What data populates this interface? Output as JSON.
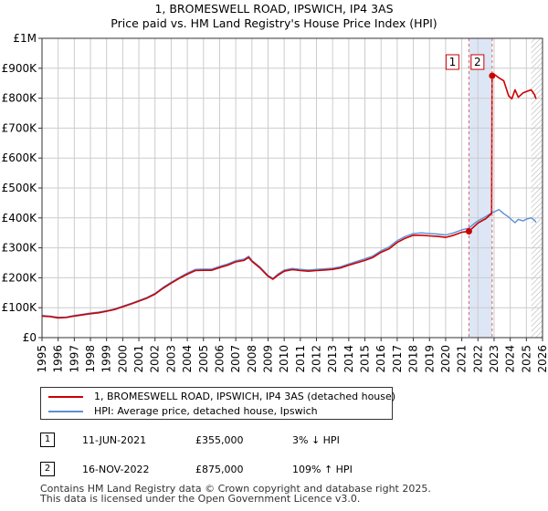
{
  "title_line1": "1, BROMESWELL ROAD, IPSWICH, IP4 3AS",
  "title_line2": "Price paid vs. HM Land Registry's House Price Index (HPI)",
  "legend": {
    "property_label": "1, BROMESWELL ROAD, IPSWICH, IP4 3AS (detached house)",
    "hpi_label": "HPI: Average price, detached house, Ipswich"
  },
  "sales": [
    {
      "marker": "1",
      "date": "11-JUN-2021",
      "price": "£355,000",
      "hpi_note": "3% ↓ HPI"
    },
    {
      "marker": "2",
      "date": "16-NOV-2022",
      "price": "£875,000",
      "hpi_note": "109% ↑ HPI"
    }
  ],
  "footer_line1": "Contains HM Land Registry data © Crown copyright and database right 2025.",
  "footer_line2": "This data is licensed under the Open Government Licence v3.0.",
  "chart_data": {
    "type": "line",
    "title": "1, BROMESWELL ROAD, IPSWICH, IP4 3AS — Price paid vs. HM Land Registry's House Price Index (HPI)",
    "xlim": [
      1995,
      2026
    ],
    "ylim": [
      0,
      1000000
    ],
    "x_ticks": [
      "1995",
      "1996",
      "1997",
      "1998",
      "1999",
      "2000",
      "2001",
      "2002",
      "2003",
      "2004",
      "2005",
      "2006",
      "2007",
      "2008",
      "2009",
      "2010",
      "2011",
      "2012",
      "2013",
      "2014",
      "2015",
      "2016",
      "2017",
      "2018",
      "2019",
      "2020",
      "2021",
      "2022",
      "2023",
      "2024",
      "2025",
      "2026"
    ],
    "y_ticks": [
      {
        "value": 0,
        "label": "£0"
      },
      {
        "value": 100000,
        "label": "£100K"
      },
      {
        "value": 200000,
        "label": "£200K"
      },
      {
        "value": 300000,
        "label": "£300K"
      },
      {
        "value": 400000,
        "label": "£400K"
      },
      {
        "value": 500000,
        "label": "£500K"
      },
      {
        "value": 600000,
        "label": "£600K"
      },
      {
        "value": 700000,
        "label": "£700K"
      },
      {
        "value": 800000,
        "label": "£800K"
      },
      {
        "value": 900000,
        "label": "£900K"
      },
      {
        "value": 1000000,
        "label": "£1M"
      }
    ],
    "shaded_span": [
      2021.44,
      2022.88
    ],
    "hatched_from": 2025.3,
    "colors": {
      "property": "#cc0000",
      "hpi": "#5b8fd6",
      "shade": "#dde6f5",
      "grid": "#cccccc",
      "vline": "#e06060",
      "marker_label_bg": "#ffffff"
    },
    "series": [
      {
        "name": "1, BROMESWELL ROAD, IPSWICH, IP4 3AS (detached house)",
        "x": [
          1995.0,
          1995.5,
          1996.0,
          1996.5,
          1997.0,
          1997.5,
          1998.0,
          1998.5,
          1999.0,
          1999.5,
          2000.0,
          2000.5,
          2001.0,
          2001.5,
          2002.0,
          2002.5,
          2003.0,
          2003.5,
          2004.0,
          2004.5,
          2005.0,
          2005.5,
          2006.0,
          2006.5,
          2007.0,
          2007.5,
          2007.8,
          2008.0,
          2008.5,
          2009.0,
          2009.3,
          2009.6,
          2010.0,
          2010.5,
          2011.0,
          2011.5,
          2012.0,
          2012.5,
          2013.0,
          2013.5,
          2014.0,
          2014.5,
          2015.0,
          2015.5,
          2016.0,
          2016.5,
          2017.0,
          2017.5,
          2018.0,
          2018.5,
          2019.0,
          2019.5,
          2020.0,
          2020.5,
          2021.0,
          2021.44,
          2021.7,
          2022.0,
          2022.5,
          2022.85,
          2022.88,
          2023.0,
          2023.3,
          2023.6,
          2023.9,
          2024.1,
          2024.3,
          2024.5,
          2024.8,
          2025.0,
          2025.3,
          2025.5,
          2025.6
        ],
        "values": [
          72000,
          70000,
          66000,
          67000,
          72000,
          76000,
          80000,
          83000,
          88000,
          94000,
          103000,
          112000,
          122000,
          132000,
          145000,
          165000,
          182000,
          198000,
          212000,
          224000,
          225000,
          225000,
          234000,
          242000,
          253000,
          258000,
          268000,
          255000,
          233000,
          205000,
          195000,
          208000,
          222000,
          227000,
          224000,
          222000,
          224000,
          226000,
          228000,
          233000,
          242000,
          250000,
          258000,
          268000,
          285000,
          297000,
          318000,
          332000,
          342000,
          342000,
          340000,
          338000,
          335000,
          342000,
          352000,
          355000,
          368000,
          383000,
          398000,
          415000,
          875000,
          880000,
          868000,
          858000,
          808000,
          798000,
          828000,
          803000,
          818000,
          822000,
          828000,
          812000,
          798000
        ]
      },
      {
        "name": "HPI: Average price, detached house, Ipswich",
        "x": [
          1995.0,
          1995.5,
          1996.0,
          1996.5,
          1997.0,
          1997.5,
          1998.0,
          1998.5,
          1999.0,
          1999.5,
          2000.0,
          2000.5,
          2001.0,
          2001.5,
          2002.0,
          2002.5,
          2003.0,
          2003.5,
          2004.0,
          2004.5,
          2005.0,
          2005.5,
          2006.0,
          2006.5,
          2007.0,
          2007.5,
          2007.8,
          2008.0,
          2008.5,
          2009.0,
          2009.3,
          2009.6,
          2010.0,
          2010.5,
          2011.0,
          2011.5,
          2012.0,
          2012.5,
          2013.0,
          2013.5,
          2014.0,
          2014.5,
          2015.0,
          2015.5,
          2016.0,
          2016.5,
          2017.0,
          2017.5,
          2018.0,
          2018.5,
          2019.0,
          2019.5,
          2020.0,
          2020.5,
          2021.0,
          2021.44,
          2021.7,
          2022.0,
          2022.5,
          2022.88,
          2023.0,
          2023.3,
          2023.6,
          2023.9,
          2024.1,
          2024.3,
          2024.5,
          2024.8,
          2025.0,
          2025.3,
          2025.5,
          2025.6
        ],
        "values": [
          74000,
          72000,
          68000,
          69000,
          74000,
          78000,
          82000,
          85000,
          90000,
          96000,
          105000,
          114000,
          124000,
          134000,
          148000,
          168000,
          185000,
          201000,
          216000,
          228000,
          229000,
          229000,
          238000,
          246000,
          257000,
          262000,
          272000,
          258000,
          236000,
          208000,
          198000,
          212000,
          226000,
          231000,
          228000,
          226000,
          228000,
          230000,
          232000,
          237000,
          246000,
          255000,
          263000,
          273000,
          290000,
          303000,
          324000,
          338000,
          348000,
          350000,
          348000,
          346000,
          343000,
          350000,
          360000,
          366000,
          378000,
          390000,
          405000,
          418000,
          420000,
          428000,
          414000,
          403000,
          393000,
          384000,
          395000,
          390000,
          396000,
          400000,
          392000,
          385000
        ]
      }
    ],
    "points": [
      {
        "label": "1",
        "x": 2021.44,
        "y": 355000
      },
      {
        "label": "2",
        "x": 2022.88,
        "y": 875000
      }
    ]
  }
}
